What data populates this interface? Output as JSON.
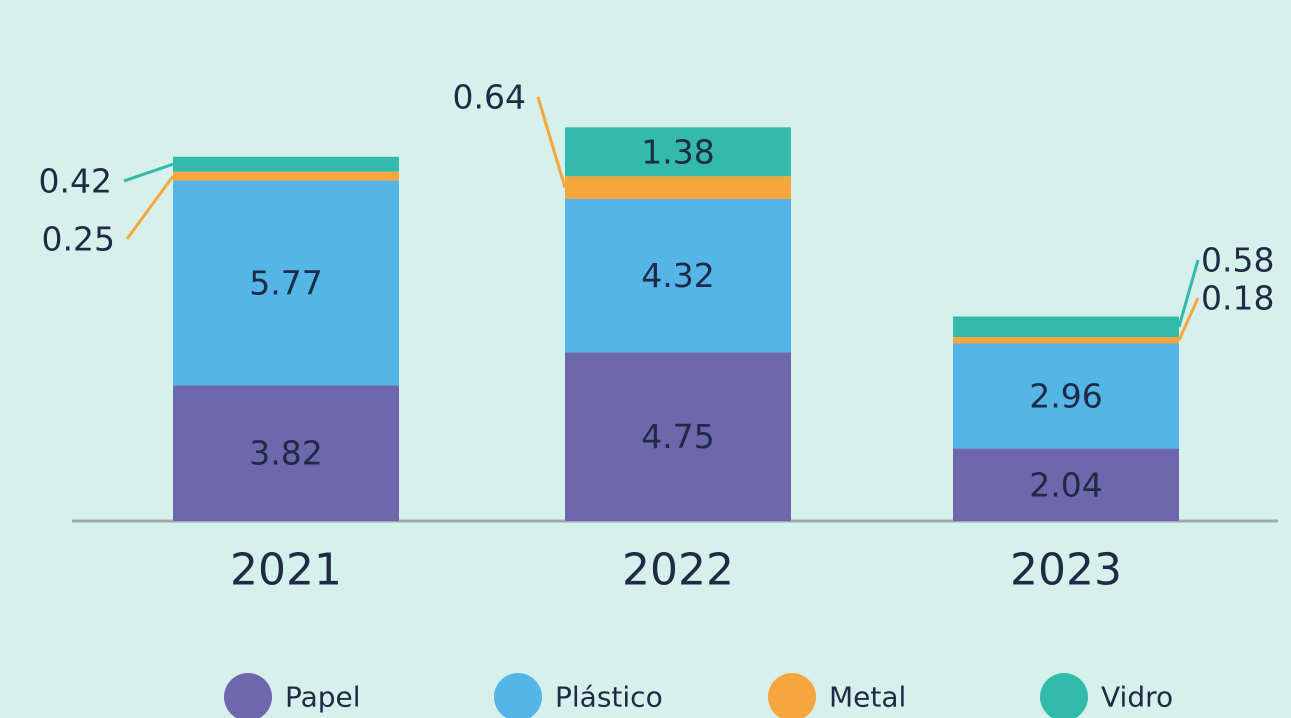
{
  "chart_data": {
    "type": "bar",
    "stacked": true,
    "categories": [
      "2021",
      "2022",
      "2023"
    ],
    "series": [
      {
        "name": "Papel",
        "color": "#6e67ae",
        "values": [
          3.82,
          4.75,
          2.04
        ]
      },
      {
        "name": "Plástico",
        "color": "#53b6e6",
        "values": [
          5.77,
          4.32,
          2.96
        ]
      },
      {
        "name": "Metal",
        "color": "#f6a63c",
        "values": [
          0.25,
          0.64,
          0.18
        ]
      },
      {
        "name": "Vidro",
        "color": "#32bbaa",
        "values": [
          0.42,
          1.38,
          0.58
        ]
      }
    ],
    "value_labels": [
      [
        "3.82",
        "5.77",
        "0.25",
        "0.42"
      ],
      [
        "4.75",
        "4.32",
        "0.64",
        "1.38"
      ],
      [
        "2.04",
        "2.96",
        "0.18",
        "0.58"
      ]
    ],
    "title": "",
    "xlabel": "",
    "ylabel": "",
    "ylim": [
      0,
      11.2
    ],
    "grid": false,
    "legend_position": "bottom",
    "axis_color": "#a3a8ad",
    "text_color": "#1f2a44"
  }
}
